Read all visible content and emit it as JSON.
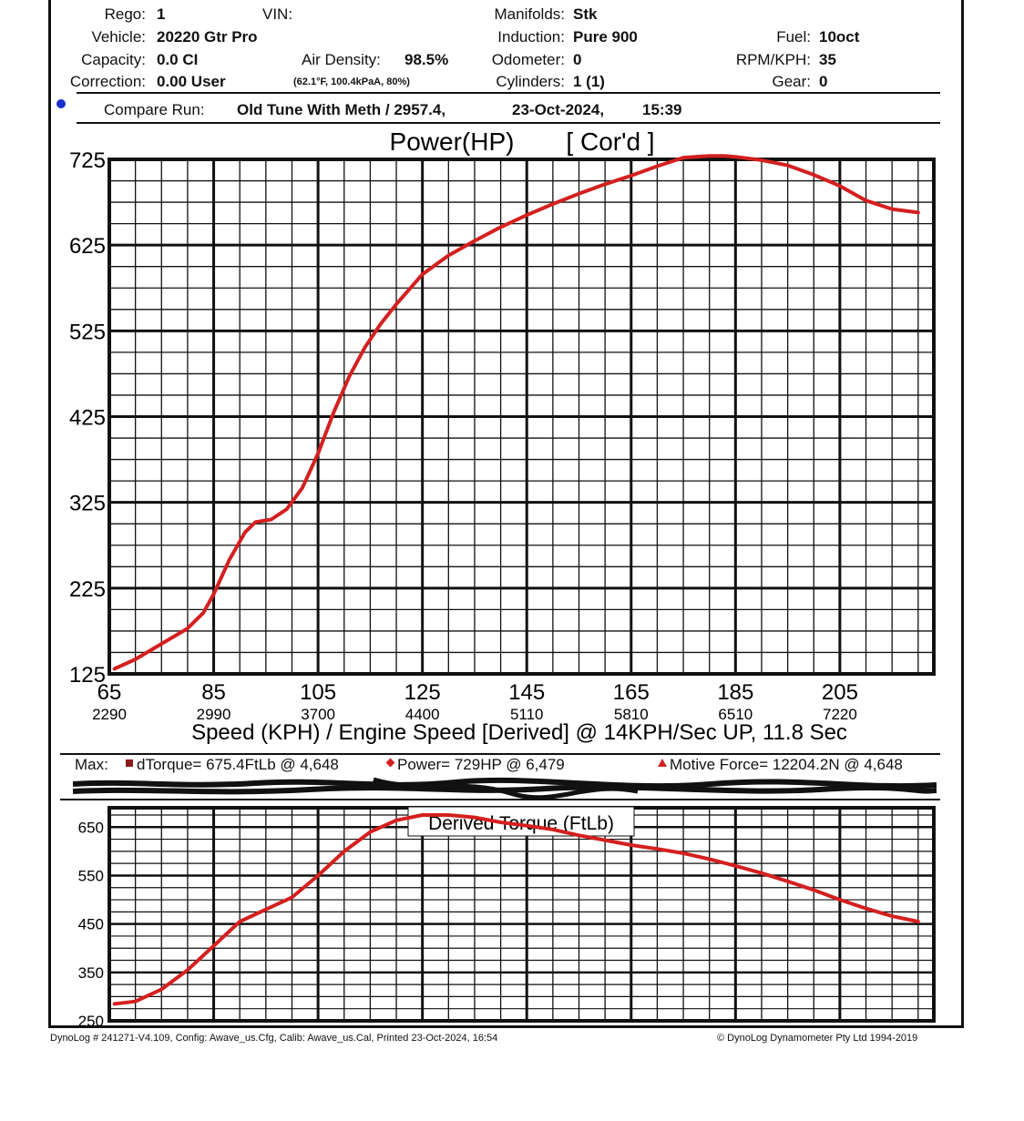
{
  "header": {
    "rego_label": "Rego:",
    "rego_value": "1",
    "vin_label": "VIN:",
    "vehicle_label": "Vehicle:",
    "vehicle_value": "20220 Gtr Pro",
    "capacity_label": "Capacity:",
    "capacity_value": "0.0 CI",
    "correction_label": "Correction:",
    "correction_value": "0.00 User",
    "air_density_label": "Air Density:",
    "air_density_value": "98.5%",
    "air_conditions": "(62.1°F, 100.4kPaA, 80%)",
    "manifolds_label": "Manifolds:",
    "manifolds_value": "Stk",
    "induction_label": "Induction:",
    "induction_value": "Pure 900",
    "odometer_label": "Odometer:",
    "odometer_value": "0",
    "cylinders_label": "Cylinders:",
    "cylinders_value": "1 (1)",
    "fuel_label": "Fuel:",
    "fuel_value": "10oct",
    "rpm_kph_label": "RPM/KPH:",
    "rpm_kph_value": "35",
    "gear_label": "Gear:",
    "gear_value": "0"
  },
  "compare_run": {
    "label": "Compare Run:",
    "name": "Old Tune With Meth / 2957.4,",
    "date": "23-Oct-2024,",
    "time": "15:39",
    "marker_color": "#1a2fd0"
  },
  "max_line": {
    "prefix": "Max:",
    "torque": "dTorque= 675.4FtLb @ 4,648",
    "power": "Power= 729HP @ 6,479",
    "motive": "Motive Force= 12204.2N @ 4,648",
    "torque_marker_color": "#8b1a1a",
    "power_marker_color": "#d42020",
    "motive_marker_color": "#d42020"
  },
  "footer": {
    "left": "DynoLog # 241271-V4.109, Config: Awave_us.Cfg, Calib: Awave_us.Cal, Printed 23-Oct-2024, 16:54",
    "right": "© DynoLog Dynamometer Pty Ltd 1994-2019"
  },
  "chart_data": [
    {
      "type": "line",
      "title": "Power(HP)",
      "title_suffix": "[ Cor'd ]",
      "xlabel": "Speed (KPH) / Engine Speed [Derived] @ 14KPH/Sec UP, 11.8 Sec",
      "ylabel": "Power (HP)",
      "xlim": [
        65,
        223
      ],
      "ylim": [
        125,
        725
      ],
      "x_ticks": [
        "65",
        "85",
        "105",
        "125",
        "145",
        "165",
        "185",
        "205"
      ],
      "x_ticks_rpm": [
        "2290",
        "2990",
        "3700",
        "4400",
        "5110",
        "5810",
        "6510",
        "7220"
      ],
      "y_ticks": [
        "725",
        "625",
        "525",
        "425",
        "325",
        "225",
        "125"
      ],
      "line_color": "#d42020",
      "series": [
        {
          "name": "Power",
          "x": [
            66,
            70,
            75,
            80,
            83,
            85,
            88,
            91,
            93,
            96,
            99,
            102,
            105,
            108,
            111,
            114,
            117,
            120,
            125,
            130,
            135,
            140,
            145,
            150,
            155,
            160,
            165,
            170,
            175,
            180,
            183,
            185,
            190,
            195,
            200,
            205,
            210,
            215,
            220
          ],
          "y": [
            131,
            142,
            160,
            178,
            196,
            218,
            258,
            290,
            302,
            305,
            317,
            342,
            382,
            430,
            472,
            506,
            533,
            556,
            591,
            613,
            630,
            646,
            660,
            673,
            685,
            696,
            706,
            717,
            727,
            729,
            729,
            728,
            724,
            718,
            707,
            694,
            677,
            667,
            663
          ]
        }
      ]
    },
    {
      "type": "line",
      "title": "Derived Torque (FtLb)",
      "xlabel": "",
      "ylabel": "Torque (FtLb)",
      "xlim": [
        65,
        223
      ],
      "ylim": [
        250,
        690
      ],
      "y_ticks": [
        "650",
        "550",
        "450",
        "350",
        "250"
      ],
      "line_color": "#d42020",
      "series": [
        {
          "name": "Derived Torque",
          "x": [
            66,
            70,
            75,
            80,
            85,
            90,
            95,
            100,
            105,
            110,
            115,
            120,
            125,
            130,
            135,
            140,
            145,
            150,
            155,
            160,
            165,
            170,
            175,
            180,
            185,
            190,
            195,
            200,
            205,
            210,
            215,
            220
          ],
          "y": [
            285,
            290,
            315,
            355,
            405,
            455,
            480,
            505,
            550,
            600,
            640,
            664,
            675,
            675,
            670,
            660,
            653,
            645,
            633,
            623,
            613,
            605,
            596,
            584,
            570,
            555,
            538,
            520,
            500,
            482,
            466,
            455
          ]
        }
      ]
    }
  ]
}
